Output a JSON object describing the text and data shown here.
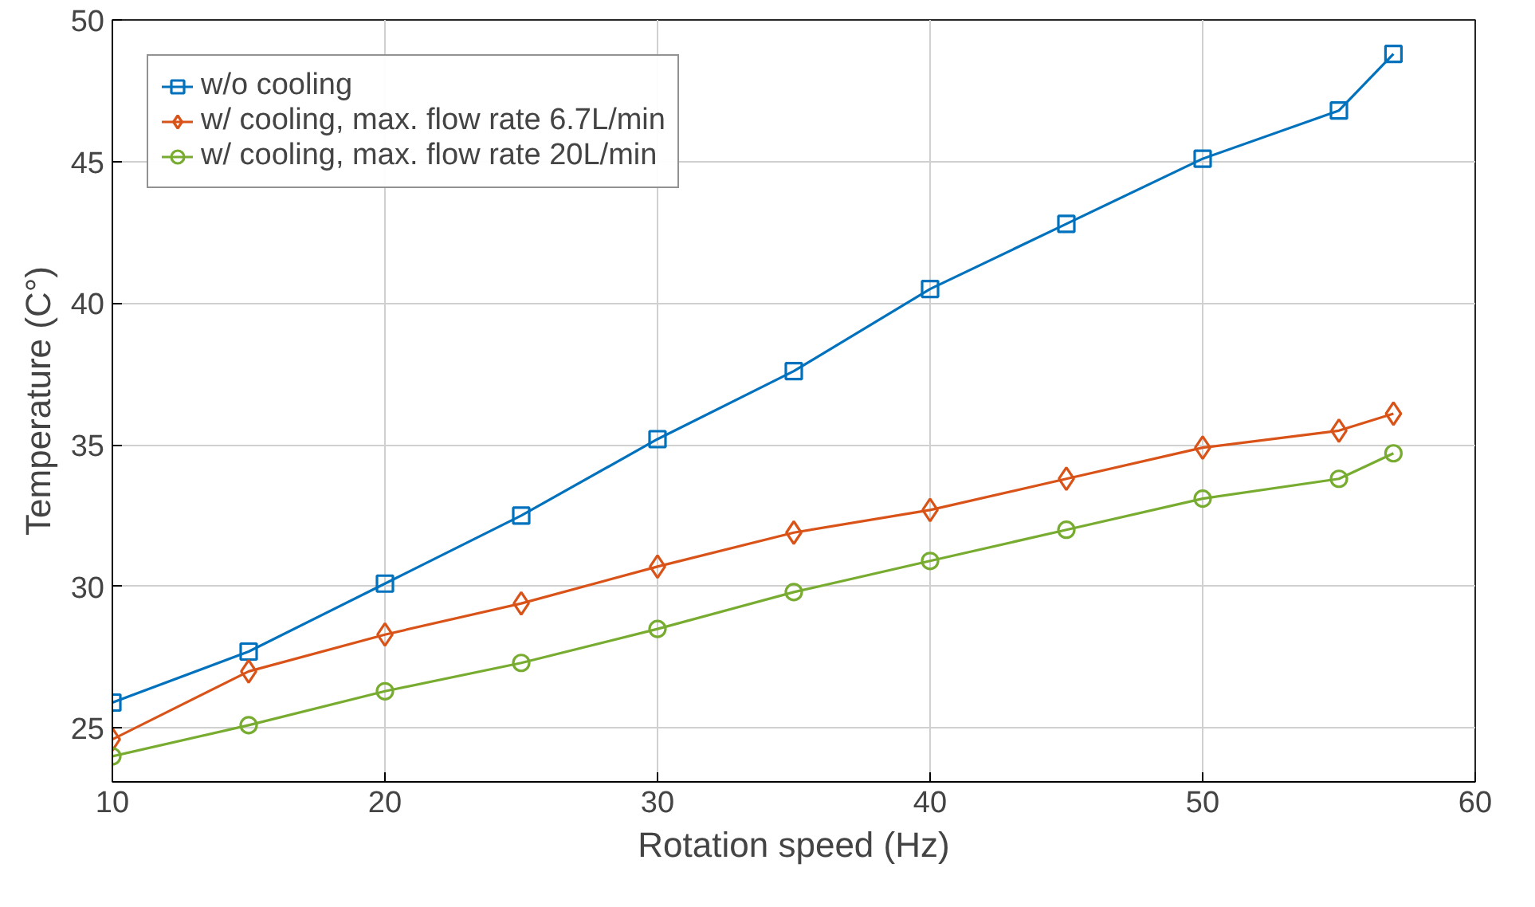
{
  "chart_data": {
    "type": "line",
    "xlabel": "Rotation speed (Hz)",
    "ylabel": "Temperature (C°)",
    "x": [
      10,
      15,
      20,
      25,
      30,
      35,
      40,
      45,
      50,
      55,
      57
    ],
    "series": [
      {
        "name": "w/o cooling",
        "color": "#0072bd",
        "marker": "square",
        "values": [
          25.9,
          27.7,
          30.1,
          32.5,
          35.2,
          37.6,
          40.5,
          42.8,
          45.1,
          46.8,
          48.8
        ]
      },
      {
        "name": "w/ cooling, max. flow rate 6.7L/min",
        "color": "#d95319",
        "marker": "diamond",
        "values": [
          24.6,
          27.0,
          28.3,
          29.4,
          30.7,
          31.9,
          32.7,
          33.8,
          34.9,
          35.5,
          36.1
        ]
      },
      {
        "name": "w/ cooling, max. flow rate 20L/min",
        "color": "#77ac30",
        "marker": "circle",
        "values": [
          24.0,
          25.1,
          26.3,
          27.3,
          28.5,
          29.8,
          30.9,
          32.0,
          33.1,
          33.8,
          34.7
        ]
      }
    ],
    "xlim": [
      10,
      60
    ],
    "ylim": [
      23.1,
      50
    ],
    "xticks": [
      10,
      20,
      30,
      40,
      50,
      60
    ],
    "yticks": [
      25,
      30,
      35,
      40,
      45,
      50
    ],
    "grid": true,
    "legend": "top left",
    "line_style": "solid"
  }
}
